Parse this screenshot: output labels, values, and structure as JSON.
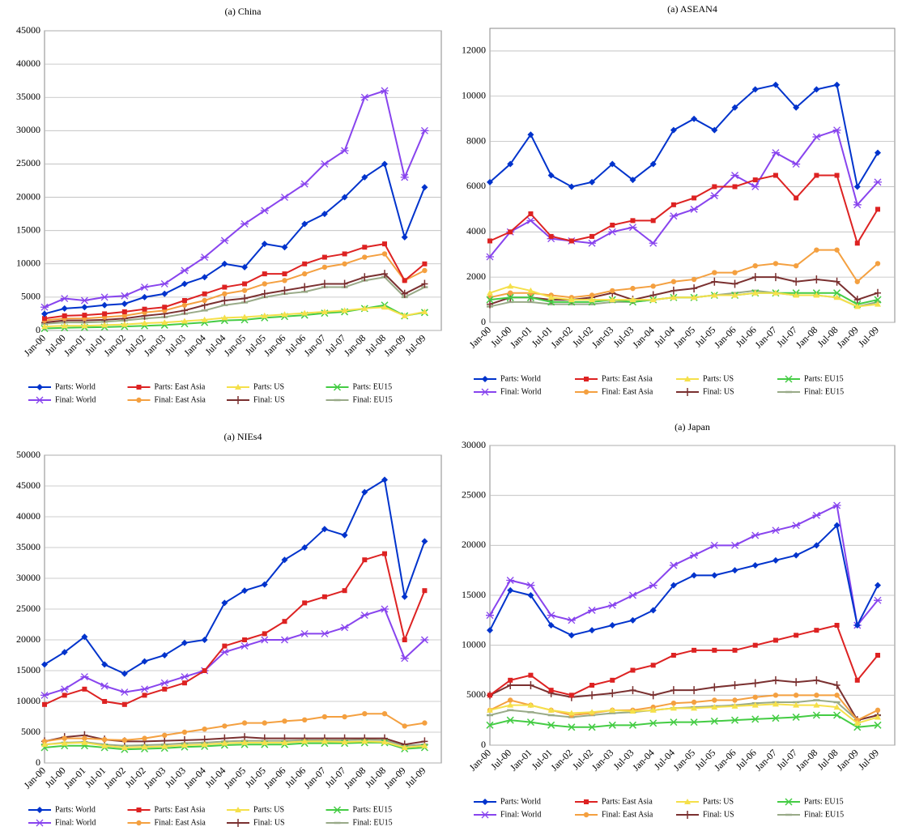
{
  "chart_data": [
    {
      "type": "line",
      "title": "(a) China",
      "categories": [
        "Jan-00",
        "Jul-00",
        "Jan-01",
        "Jul-01",
        "Jan-02",
        "Jul-02",
        "Jan-03",
        "Jul-03",
        "Jan-04",
        "Jul-04",
        "Jan-05",
        "Jul-05",
        "Jan-06",
        "Jul-06",
        "Jan-07",
        "Jul-07",
        "Jan-08",
        "Jul-08",
        "Jan-09",
        "Jul-09"
      ],
      "ylim": [
        0,
        45000
      ],
      "yticks": [
        0,
        5000,
        10000,
        15000,
        20000,
        25000,
        30000,
        35000,
        40000,
        45000
      ],
      "series": [
        {
          "name": "Parts: World",
          "color": "#0033cc",
          "marker": "diamond",
          "values": [
            2500,
            3300,
            3500,
            3800,
            4000,
            5000,
            5500,
            7000,
            8000,
            10000,
            9500,
            13000,
            12500,
            16000,
            17500,
            20000,
            23000,
            25000,
            14000,
            21500
          ]
        },
        {
          "name": "Parts: East Asia",
          "color": "#dd2222",
          "marker": "square",
          "values": [
            1800,
            2200,
            2300,
            2500,
            2800,
            3200,
            3500,
            4500,
            5500,
            6500,
            7000,
            8500,
            8500,
            10000,
            11000,
            11500,
            12500,
            13000,
            7500,
            10000
          ]
        },
        {
          "name": "Parts: US",
          "color": "#f5e04a",
          "marker": "triangle",
          "values": [
            600,
            700,
            700,
            800,
            900,
            1100,
            1200,
            1400,
            1600,
            1900,
            2000,
            2200,
            2400,
            2600,
            2800,
            3000,
            3300,
            3500,
            2200,
            2800
          ]
        },
        {
          "name": "Parts: EU15",
          "color": "#44cc44",
          "marker": "x",
          "values": [
            300,
            400,
            450,
            500,
            600,
            700,
            800,
            1000,
            1200,
            1500,
            1600,
            1900,
            2100,
            2300,
            2600,
            2800,
            3300,
            3800,
            2200,
            2700
          ]
        },
        {
          "name": "Final: World",
          "color": "#8844ee",
          "marker": "star",
          "values": [
            3500,
            4800,
            4500,
            5000,
            5200,
            6500,
            7000,
            9000,
            11000,
            13500,
            16000,
            18000,
            20000,
            22000,
            25000,
            27000,
            35000,
            36000,
            23000,
            30000
          ]
        },
        {
          "name": "Final: East Asia",
          "color": "#f4a040",
          "marker": "circle",
          "values": [
            1500,
            1800,
            1800,
            2000,
            2200,
            2700,
            3000,
            3800,
            4500,
            5500,
            6000,
            7000,
            7500,
            8500,
            9500,
            10000,
            11000,
            11500,
            7500,
            9000
          ]
        },
        {
          "name": "Final: US",
          "color": "#7a3030",
          "marker": "plus",
          "values": [
            1200,
            1500,
            1500,
            1600,
            1800,
            2200,
            2500,
            3000,
            3800,
            4500,
            4800,
            5500,
            6000,
            6500,
            7000,
            7000,
            8000,
            8500,
            5500,
            7000
          ]
        },
        {
          "name": "Final: EU15",
          "color": "#99aa88",
          "marker": "dash",
          "values": [
            1000,
            1200,
            1200,
            1300,
            1500,
            1800,
            2000,
            2500,
            3000,
            3800,
            4200,
            5000,
            5500,
            5800,
            6500,
            6500,
            7500,
            8000,
            5000,
            6500
          ]
        }
      ]
    },
    {
      "type": "line",
      "title": "(a) ASEAN4",
      "categories": [
        "Jan-00",
        "Jul-00",
        "Jan-01",
        "Jul-01",
        "Jan-02",
        "Jul-02",
        "Jan-03",
        "Jul-03",
        "Jan-04",
        "Jul-04",
        "Jan-05",
        "Jul-05",
        "Jan-06",
        "Jul-06",
        "Jan-07",
        "Jul-07",
        "Jan-08",
        "Jul-08",
        "Jan-09",
        "Jul-09"
      ],
      "ylim": [
        0,
        13000
      ],
      "yticks": [
        0,
        2000,
        4000,
        6000,
        8000,
        10000,
        12000
      ],
      "series": [
        {
          "name": "Parts: World",
          "color": "#0033cc",
          "marker": "diamond",
          "values": [
            6200,
            7000,
            8300,
            6500,
            6000,
            6200,
            7000,
            6300,
            7000,
            8500,
            9000,
            8500,
            9500,
            10300,
            10500,
            9500,
            10300,
            10500,
            6000,
            7500
          ]
        },
        {
          "name": "Parts: East Asia",
          "color": "#dd2222",
          "marker": "square",
          "values": [
            3600,
            4000,
            4800,
            3800,
            3600,
            3800,
            4300,
            4500,
            4500,
            5200,
            5500,
            6000,
            6000,
            6300,
            6500,
            5500,
            6500,
            6500,
            3500,
            5000
          ]
        },
        {
          "name": "Parts: US",
          "color": "#f5e04a",
          "marker": "triangle",
          "values": [
            1300,
            1600,
            1400,
            1100,
            1000,
            1000,
            1000,
            1000,
            1000,
            1100,
            1100,
            1200,
            1200,
            1300,
            1300,
            1200,
            1200,
            1100,
            700,
            800
          ]
        },
        {
          "name": "Parts: EU15",
          "color": "#44cc44",
          "marker": "x",
          "values": [
            1000,
            1100,
            1100,
            900,
            900,
            900,
            1000,
            900,
            1000,
            1100,
            1100,
            1200,
            1200,
            1300,
            1300,
            1300,
            1300,
            1300,
            800,
            1000
          ]
        },
        {
          "name": "Final: World",
          "color": "#8844ee",
          "marker": "star",
          "values": [
            2900,
            4000,
            4500,
            3700,
            3600,
            3500,
            4000,
            4200,
            3500,
            4700,
            5000,
            5600,
            6500,
            6000,
            7500,
            7000,
            8200,
            8500,
            5200,
            6200
          ]
        },
        {
          "name": "Final: East Asia",
          "color": "#f4a040",
          "marker": "circle",
          "values": [
            1100,
            1300,
            1300,
            1200,
            1100,
            1200,
            1400,
            1500,
            1600,
            1800,
            1900,
            2200,
            2200,
            2500,
            2600,
            2500,
            3200,
            3200,
            1800,
            2600
          ]
        },
        {
          "name": "Final: US",
          "color": "#7a3030",
          "marker": "plus",
          "values": [
            800,
            1100,
            1100,
            1000,
            1000,
            1100,
            1300,
            1000,
            1200,
            1400,
            1500,
            1800,
            1700,
            2000,
            2000,
            1800,
            1900,
            1800,
            1000,
            1300
          ]
        },
        {
          "name": "Final: EU15",
          "color": "#99aa88",
          "marker": "dash",
          "values": [
            700,
            900,
            900,
            800,
            800,
            800,
            900,
            900,
            1000,
            1100,
            1100,
            1200,
            1300,
            1400,
            1300,
            1200,
            1200,
            1100,
            700,
            900
          ]
        }
      ]
    },
    {
      "type": "line",
      "title": "(a) NIEs4",
      "categories": [
        "Jan-00",
        "Jul-00",
        "Jan-01",
        "Jul-01",
        "Jan-02",
        "Jul-02",
        "Jan-03",
        "Jul-03",
        "Jan-04",
        "Jul-04",
        "Jan-05",
        "Jul-05",
        "Jan-06",
        "Jul-06",
        "Jan-07",
        "Jul-07",
        "Jan-08",
        "Jul-08",
        "Jan-09",
        "Jul-09"
      ],
      "ylim": [
        0,
        50000
      ],
      "yticks": [
        0,
        5000,
        10000,
        15000,
        20000,
        25000,
        30000,
        35000,
        40000,
        45000,
        50000
      ],
      "series": [
        {
          "name": "Parts: World",
          "color": "#0033cc",
          "marker": "diamond",
          "values": [
            16000,
            18000,
            20500,
            16000,
            14500,
            16500,
            17500,
            19500,
            20000,
            26000,
            28000,
            29000,
            33000,
            35000,
            38000,
            37000,
            44000,
            46000,
            27000,
            36000
          ]
        },
        {
          "name": "Parts: East Asia",
          "color": "#dd2222",
          "marker": "square",
          "values": [
            9500,
            11000,
            12000,
            10000,
            9500,
            11000,
            12000,
            13000,
            15000,
            19000,
            20000,
            21000,
            23000,
            26000,
            27000,
            28000,
            33000,
            34000,
            20000,
            28000
          ]
        },
        {
          "name": "Parts: US",
          "color": "#f5e04a",
          "marker": "triangle",
          "values": [
            3000,
            3200,
            3300,
            2800,
            2500,
            2600,
            2700,
            2900,
            3000,
            3200,
            3300,
            3300,
            3300,
            3500,
            3500,
            3400,
            3500,
            3400,
            2500,
            2800
          ]
        },
        {
          "name": "Parts: EU15",
          "color": "#44cc44",
          "marker": "x",
          "values": [
            2500,
            2800,
            2800,
            2500,
            2200,
            2300,
            2400,
            2600,
            2700,
            2900,
            3000,
            3000,
            3000,
            3200,
            3200,
            3200,
            3300,
            3300,
            2300,
            2500
          ]
        },
        {
          "name": "Final: World",
          "color": "#8844ee",
          "marker": "star",
          "values": [
            11000,
            12000,
            14000,
            12500,
            11500,
            12000,
            13000,
            14000,
            15000,
            18000,
            19000,
            20000,
            20000,
            21000,
            21000,
            22000,
            24000,
            25000,
            17000,
            20000
          ]
        },
        {
          "name": "Final: East Asia",
          "color": "#f4a040",
          "marker": "circle",
          "values": [
            3500,
            4000,
            4000,
            3800,
            3700,
            4000,
            4500,
            5000,
            5500,
            6000,
            6500,
            6500,
            6800,
            7000,
            7500,
            7500,
            8000,
            8000,
            6000,
            6500
          ]
        },
        {
          "name": "Final: US",
          "color": "#7a3030",
          "marker": "plus",
          "values": [
            3500,
            4200,
            4500,
            3800,
            3500,
            3500,
            3600,
            3700,
            3800,
            4000,
            4200,
            4000,
            4000,
            4000,
            4000,
            4000,
            4000,
            4000,
            3000,
            3500
          ]
        },
        {
          "name": "Final: EU15",
          "color": "#99aa88",
          "marker": "dash",
          "values": [
            3000,
            3300,
            3400,
            3000,
            2800,
            2900,
            3000,
            3200,
            3300,
            3500,
            3600,
            3600,
            3600,
            3700,
            3700,
            3700,
            3800,
            3700,
            2800,
            3000
          ]
        }
      ]
    },
    {
      "type": "line",
      "title": "(a) Japan",
      "categories": [
        "Jan-00",
        "Jul-00",
        "Jan-01",
        "Jul-01",
        "Jan-02",
        "Jul-02",
        "Jan-03",
        "Jul-03",
        "Jan-04",
        "Jul-04",
        "Jan-05",
        "Jul-05",
        "Jan-06",
        "Jul-06",
        "Jan-07",
        "Jul-07",
        "Jan-08",
        "Jul-08",
        "Jan-09",
        "Jul-09"
      ],
      "ylim": [
        0,
        30000
      ],
      "yticks": [
        0,
        5000,
        10000,
        15000,
        20000,
        25000,
        30000
      ],
      "series": [
        {
          "name": "Parts: World",
          "color": "#0033cc",
          "marker": "diamond",
          "values": [
            11500,
            15500,
            15000,
            12000,
            11000,
            11500,
            12000,
            12500,
            13500,
            16000,
            17000,
            17000,
            17500,
            18000,
            18500,
            19000,
            20000,
            22000,
            12000,
            16000
          ]
        },
        {
          "name": "Parts: East Asia",
          "color": "#dd2222",
          "marker": "square",
          "values": [
            5000,
            6500,
            7000,
            5500,
            5000,
            6000,
            6500,
            7500,
            8000,
            9000,
            9500,
            9500,
            9500,
            10000,
            10500,
            11000,
            11500,
            12000,
            6500,
            9000
          ]
        },
        {
          "name": "Parts: US",
          "color": "#f5e04a",
          "marker": "triangle",
          "values": [
            3500,
            4000,
            4000,
            3500,
            3200,
            3300,
            3500,
            3400,
            3500,
            3700,
            3700,
            3800,
            3900,
            4000,
            4100,
            4000,
            4000,
            3800,
            2200,
            2800
          ]
        },
        {
          "name": "Parts: EU15",
          "color": "#44cc44",
          "marker": "x",
          "values": [
            2000,
            2500,
            2300,
            2000,
            1800,
            1800,
            2000,
            2000,
            2200,
            2300,
            2300,
            2400,
            2500,
            2600,
            2700,
            2800,
            3000,
            3000,
            1800,
            2000
          ]
        },
        {
          "name": "Final: World",
          "color": "#8844ee",
          "marker": "star",
          "values": [
            13000,
            16500,
            16000,
            13000,
            12500,
            13500,
            14000,
            15000,
            16000,
            18000,
            19000,
            20000,
            20000,
            21000,
            21500,
            22000,
            23000,
            24000,
            12000,
            14500
          ]
        },
        {
          "name": "Final: East Asia",
          "color": "#f4a040",
          "marker": "circle",
          "values": [
            3500,
            4500,
            4000,
            3500,
            3000,
            3200,
            3500,
            3500,
            3800,
            4200,
            4300,
            4500,
            4500,
            4800,
            5000,
            5000,
            5000,
            5000,
            2500,
            3500
          ]
        },
        {
          "name": "Final: US",
          "color": "#7a3030",
          "marker": "plus",
          "values": [
            5000,
            6000,
            6000,
            5200,
            4800,
            5000,
            5200,
            5500,
            5000,
            5500,
            5500,
            5800,
            6000,
            6200,
            6500,
            6300,
            6500,
            6000,
            2500,
            3000
          ]
        },
        {
          "name": "Final: EU15",
          "color": "#99aa88",
          "marker": "dash",
          "values": [
            3000,
            3500,
            3300,
            3000,
            2800,
            3000,
            3200,
            3300,
            3500,
            3700,
            3800,
            3900,
            4000,
            4200,
            4300,
            4300,
            4500,
            4300,
            2500,
            3000
          ]
        }
      ]
    }
  ]
}
